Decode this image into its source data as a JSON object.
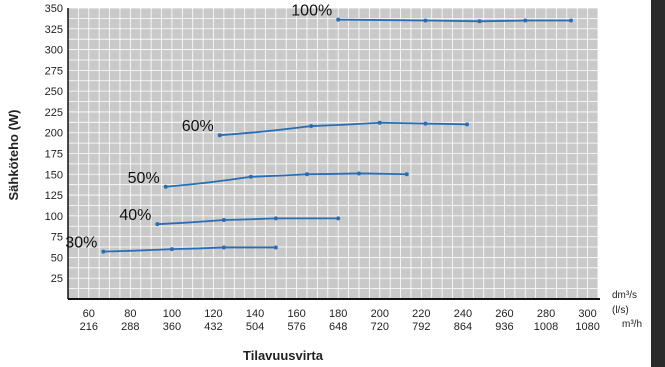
{
  "chart_data": {
    "type": "line",
    "xlabel": "Tilavuusvirta",
    "ylabel": "Sähköteho (W)",
    "x_units": [
      "dm³/s",
      "(l/s)",
      "m³/h"
    ],
    "x_ticks_dm3s": [
      "60",
      "80",
      "100",
      "120",
      "140",
      "160",
      "180",
      "200",
      "220",
      "240",
      "260",
      "280",
      "300"
    ],
    "x_ticks_m3h": [
      "216",
      "288",
      "360",
      "432",
      "504",
      "576",
      "648",
      "720",
      "792",
      "864",
      "936",
      "1008",
      "1080"
    ],
    "y_ticks": [
      "25",
      "50",
      "75",
      "100",
      "125",
      "150",
      "175",
      "200",
      "225",
      "250",
      "275",
      "300",
      "325",
      "350"
    ],
    "xlim": [
      50,
      305
    ],
    "ylim": [
      0,
      350
    ],
    "grid": true,
    "series": [
      {
        "name": "30%",
        "x": [
          67,
          100,
          125,
          150
        ],
        "y": [
          57,
          60,
          62,
          62
        ]
      },
      {
        "name": "40%",
        "x": [
          93,
          125,
          150,
          180
        ],
        "y": [
          90,
          95,
          97,
          97
        ]
      },
      {
        "name": "50%",
        "x": [
          97,
          138,
          165,
          190,
          213
        ],
        "y": [
          135,
          147,
          150,
          151,
          150
        ]
      },
      {
        "name": "60%",
        "x": [
          123,
          167,
          200,
          222,
          242
        ],
        "y": [
          197,
          208,
          212,
          211,
          210
        ]
      },
      {
        "name": "100%",
        "x": [
          180,
          222,
          248,
          270,
          292
        ],
        "y": [
          336,
          335,
          334,
          335,
          335
        ]
      }
    ],
    "series_color": "#2a6db5"
  }
}
